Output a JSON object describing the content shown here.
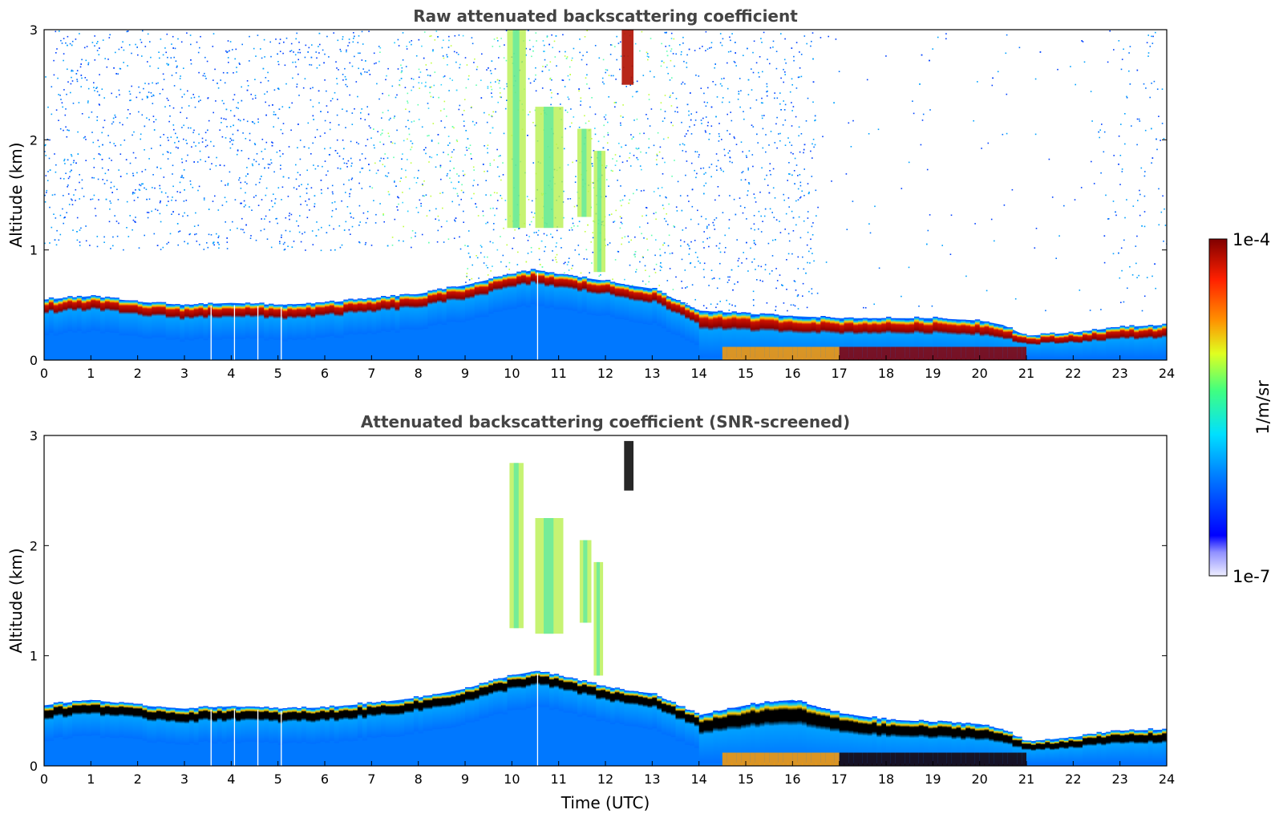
{
  "chart_data": [
    {
      "type": "heatmap",
      "title": "Raw attenuated backscattering coefficient",
      "xlabel": "",
      "ylabel": "Altitude (km)",
      "xlim": [
        0,
        24
      ],
      "ylim": [
        0,
        3
      ],
      "x_ticks": [
        "0",
        "1",
        "2",
        "3",
        "4",
        "5",
        "6",
        "7",
        "8",
        "9",
        "10",
        "11",
        "12",
        "13",
        "14",
        "15",
        "16",
        "17",
        "18",
        "19",
        "20",
        "21",
        "22",
        "23",
        "24"
      ],
      "y_ticks": [
        "0",
        "1",
        "2",
        "3"
      ],
      "boundary_layer_top_km": {
        "time": [
          0,
          1,
          2,
          3,
          4,
          5,
          6,
          7,
          8,
          9,
          10,
          10.5,
          11,
          12,
          12.5,
          13,
          14,
          15,
          16,
          17,
          18,
          19,
          20,
          20.5,
          21,
          22,
          23,
          24
        ],
        "value": [
          0.55,
          0.58,
          0.53,
          0.5,
          0.52,
          0.5,
          0.52,
          0.56,
          0.6,
          0.68,
          0.78,
          0.82,
          0.78,
          0.72,
          0.68,
          0.65,
          0.45,
          0.42,
          0.4,
          0.38,
          0.38,
          0.38,
          0.36,
          0.32,
          0.22,
          0.25,
          0.3,
          0.32
        ]
      },
      "clouds": [
        {
          "time_start": 9.9,
          "time_end": 10.3,
          "alt_bottom_km": 1.2,
          "alt_top_km": 3.0
        },
        {
          "time_start": 10.5,
          "time_end": 11.1,
          "alt_bottom_km": 1.2,
          "alt_top_km": 2.3
        },
        {
          "time_start": 11.4,
          "time_end": 11.7,
          "alt_bottom_km": 1.3,
          "alt_top_km": 2.1
        },
        {
          "time_start": 11.75,
          "time_end": 12.0,
          "alt_bottom_km": 0.8,
          "alt_top_km": 1.9
        },
        {
          "time_start": 12.35,
          "time_end": 12.6,
          "alt_bottom_km": 2.5,
          "alt_top_km": 3.0
        }
      ]
    },
    {
      "type": "heatmap",
      "title": "Attenuated backscattering coefficient (SNR-screened)",
      "xlabel": "Time (UTC)",
      "ylabel": "Altitude (km)",
      "xlim": [
        0,
        24
      ],
      "ylim": [
        0,
        3
      ],
      "x_ticks": [
        "0",
        "1",
        "2",
        "3",
        "4",
        "5",
        "6",
        "7",
        "8",
        "9",
        "10",
        "11",
        "12",
        "13",
        "14",
        "15",
        "16",
        "17",
        "18",
        "19",
        "20",
        "21",
        "22",
        "23",
        "24"
      ],
      "y_ticks": [
        "0",
        "1",
        "2",
        "3"
      ],
      "boundary_layer_top_km": {
        "time": [
          0,
          1,
          2,
          3,
          4,
          5,
          6,
          7,
          8,
          9,
          10,
          10.5,
          11,
          12,
          12.5,
          13,
          14,
          15,
          16,
          17,
          18,
          19,
          20,
          20.5,
          21,
          22,
          23,
          24
        ],
        "value": [
          0.55,
          0.6,
          0.55,
          0.52,
          0.54,
          0.52,
          0.53,
          0.57,
          0.62,
          0.7,
          0.82,
          0.86,
          0.82,
          0.72,
          0.68,
          0.66,
          0.46,
          0.55,
          0.6,
          0.48,
          0.42,
          0.4,
          0.38,
          0.33,
          0.22,
          0.26,
          0.32,
          0.33
        ]
      },
      "clouds": [
        {
          "time_start": 9.95,
          "time_end": 10.25,
          "alt_bottom_km": 1.25,
          "alt_top_km": 2.75
        },
        {
          "time_start": 10.5,
          "time_end": 11.1,
          "alt_bottom_km": 1.2,
          "alt_top_km": 2.25
        },
        {
          "time_start": 11.45,
          "time_end": 11.7,
          "alt_bottom_km": 1.3,
          "alt_top_km": 2.05
        },
        {
          "time_start": 11.75,
          "time_end": 11.95,
          "alt_bottom_km": 0.82,
          "alt_top_km": 1.85
        },
        {
          "time_start": 12.4,
          "time_end": 12.6,
          "alt_bottom_km": 2.5,
          "alt_top_km": 2.95
        }
      ]
    }
  ],
  "colorbar": {
    "label": "1/m/sr",
    "max_label": "1e-4",
    "min_label": "1e-7",
    "colormap": "jet",
    "scale": "log",
    "range": [
      1e-07,
      0.0001
    ]
  }
}
